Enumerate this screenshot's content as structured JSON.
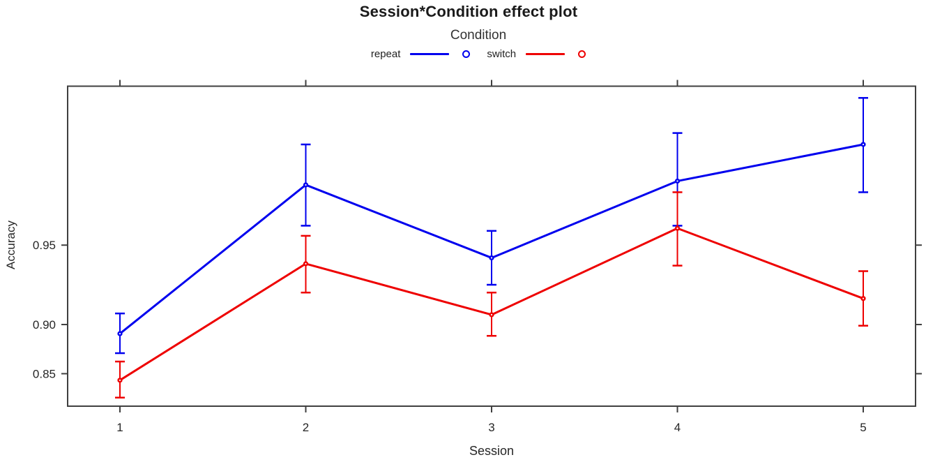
{
  "title": "Session*Condition effect plot",
  "legend": {
    "title": "Condition",
    "entries": [
      {
        "label": "repeat",
        "color": "#0000EE"
      },
      {
        "label": "switch",
        "color": "#EE0000"
      }
    ]
  },
  "axes": {
    "xlabel": "Session",
    "ylabel": "Accuracy"
  },
  "colors": {
    "repeat_blue": "#0000EE",
    "switch_red": "#EE0000",
    "frame": "#3F3F3F",
    "text": "#262626"
  },
  "chart_data": {
    "type": "line",
    "title": "Session*Condition effect plot",
    "xlabel": "Session",
    "ylabel": "Accuracy",
    "x": [
      1,
      2,
      3,
      4,
      5
    ],
    "xtick_labels": [
      "1",
      "2",
      "3",
      "4",
      "5"
    ],
    "y_scale": "logit",
    "yticks": [
      0.85,
      0.9,
      0.95
    ],
    "ytick_labels": [
      "0.85",
      "0.90",
      "0.95"
    ],
    "ylim": [
      0.807,
      0.988
    ],
    "ylim_logit": [
      1.429,
      4.44
    ],
    "grid": false,
    "legend_position": "top-center",
    "error_bars": true,
    "series": [
      {
        "name": "repeat",
        "color": "#0000EE",
        "values": [
          0.892,
          0.971,
          0.944,
          0.972,
          0.98
        ],
        "ci_low": [
          0.873,
          0.958,
          0.929,
          0.958,
          0.969
        ],
        "ci_high": [
          0.909,
          0.98,
          0.956,
          0.982,
          0.987
        ]
      },
      {
        "name": "switch",
        "color": "#EE0000",
        "values": [
          0.842,
          0.941,
          0.908,
          0.957,
          0.92
        ],
        "ci_low": [
          0.819,
          0.924,
          0.89,
          0.94,
          0.899
        ],
        "ci_high": [
          0.864,
          0.954,
          0.924,
          0.969,
          0.937
        ]
      }
    ]
  }
}
